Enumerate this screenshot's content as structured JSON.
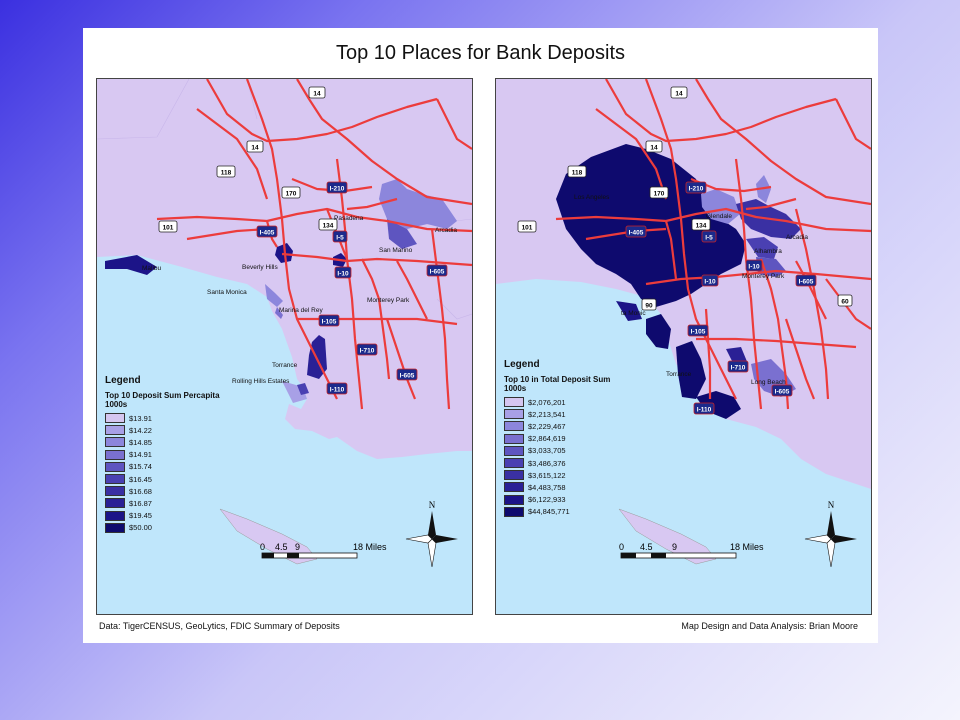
{
  "title": "Top 10 Places for Bank Deposits",
  "colors": {
    "land": "#d8c8f2",
    "water": "#bfe6fb",
    "road": "#ec3c3c",
    "class_ramp": [
      "#d5c6f0",
      "#a8a0e6",
      "#8c86dc",
      "#7a70d0",
      "#5e55c0",
      "#4a40b2",
      "#3a30a3",
      "#2a2095",
      "#1c1488",
      "#0e0a6e"
    ]
  },
  "left_map": {
    "labels": {
      "malibu": "Malibu",
      "beverly_hills": "Beverly Hills",
      "santa_monica": "Santa Monica",
      "marina_del_rey": "Marina del Rey",
      "torrance": "Torrance",
      "rolling_hills_estates": "Rolling Hills Estates",
      "pasadena": "Pasadena",
      "arcadia": "Arcadia",
      "san_marino": "San Marino",
      "monterey_park": "Monterey Park"
    },
    "legend": {
      "heading": "Legend",
      "title": "Top 10 Deposit Sum Percapita",
      "unit": "1000s",
      "classes": [
        "$13.91",
        "$14.22",
        "$14.85",
        "$14.91",
        "$15.74",
        "$16.45",
        "$16.68",
        "$16.87",
        "$19.45",
        "$50.00"
      ]
    }
  },
  "right_map": {
    "labels": {
      "glendale": "Glendale",
      "alhambra": "Alhambra",
      "arcadia": "Arcadia",
      "monterey_park": "Monterey Park",
      "santa_monica": "ta Monic",
      "torrance": "Torrance",
      "long_beach": "Long Beach",
      "los_angeles": "Los Angeles"
    },
    "legend": {
      "heading": "Legend",
      "title": "Top 10 in Total Deposit Sum",
      "unit": "1000s",
      "classes": [
        "$2,076,201",
        "$2,213,541",
        "$2,229,467",
        "$2,864,619",
        "$3,033,705",
        "$3,486,376",
        "$3,615,122",
        "$4,483,758",
        "$6,122,933",
        "$44,845,771"
      ]
    }
  },
  "highways": {
    "us14": "14",
    "sr14": "14",
    "sr118": "118",
    "sr170": "170",
    "i210": "I-210",
    "us101": "101",
    "sr134": "134",
    "i405": "I-405",
    "i5": "I-5",
    "i10": "I-10",
    "i605": "I-605",
    "i105": "I-105",
    "i710": "I-710",
    "i110": "I-110",
    "sr90": "90",
    "sr60": "60"
  },
  "scale": {
    "ticks": [
      "0",
      "4.5",
      "9",
      "18 Miles"
    ]
  },
  "north_arrow": "N",
  "footer": {
    "source": "Data: TigerCENSUS, GeoLytics, FDIC Summary of Deposits",
    "credit": "Map Design and Data Analysis: Brian Moore"
  }
}
